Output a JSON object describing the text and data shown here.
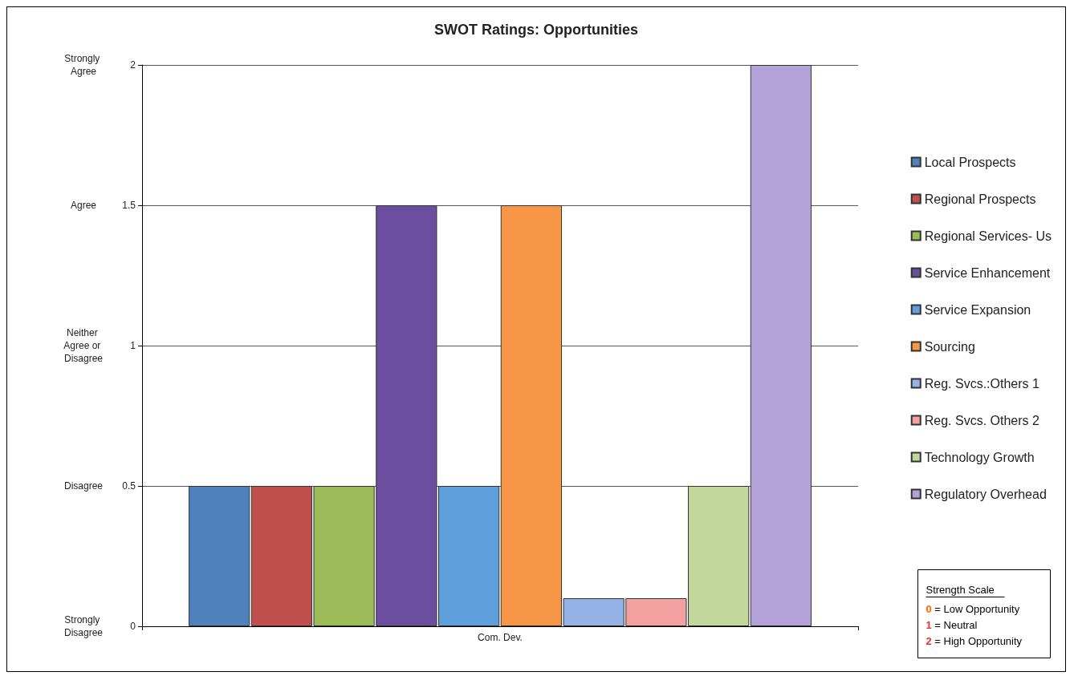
{
  "chart_data": {
    "type": "bar",
    "title": "SWOT Ratings: Opportunities",
    "categories": [
      "Com. Dev."
    ],
    "series": [
      {
        "name": "Local Prospects",
        "color": "#4f81bd",
        "values": [
          0.5
        ]
      },
      {
        "name": "Regional Prospects",
        "color": "#c0504d",
        "values": [
          0.5
        ]
      },
      {
        "name": "Regional Services- Us",
        "color": "#9bbb59",
        "values": [
          0.5
        ]
      },
      {
        "name": "Service Enhancement",
        "color": "#6b4f9e",
        "values": [
          1.5
        ]
      },
      {
        "name": "Service Expansion",
        "color": "#5fa0dc",
        "values": [
          0.5
        ]
      },
      {
        "name": "Sourcing",
        "color": "#f79646",
        "values": [
          1.5
        ]
      },
      {
        "name": "Reg. Svcs.:Others 1",
        "color": "#95b3e7",
        "values": [
          0.1
        ]
      },
      {
        "name": "Reg. Svcs. Others 2",
        "color": "#f2a0a0",
        "values": [
          0.1
        ]
      },
      {
        "name": "Technology Growth",
        "color": "#c3d69b",
        "values": [
          0.5
        ]
      },
      {
        "name": "Regulatory Overhead",
        "color": "#b3a2d7",
        "values": [
          2
        ]
      }
    ],
    "ylim": [
      0,
      2
    ],
    "yticks": [
      0,
      0.5,
      1,
      1.5,
      2
    ],
    "grid": "y",
    "legend": "right",
    "annotations": [
      "Strength Scale",
      "0 = Low Opportunity",
      "1 = Neutral",
      "2 = High Opportunity",
      "Strongly Disagree",
      "Disagree",
      "Neither Agree or Disagree",
      "Agree",
      "Strongly Agree"
    ]
  }
}
